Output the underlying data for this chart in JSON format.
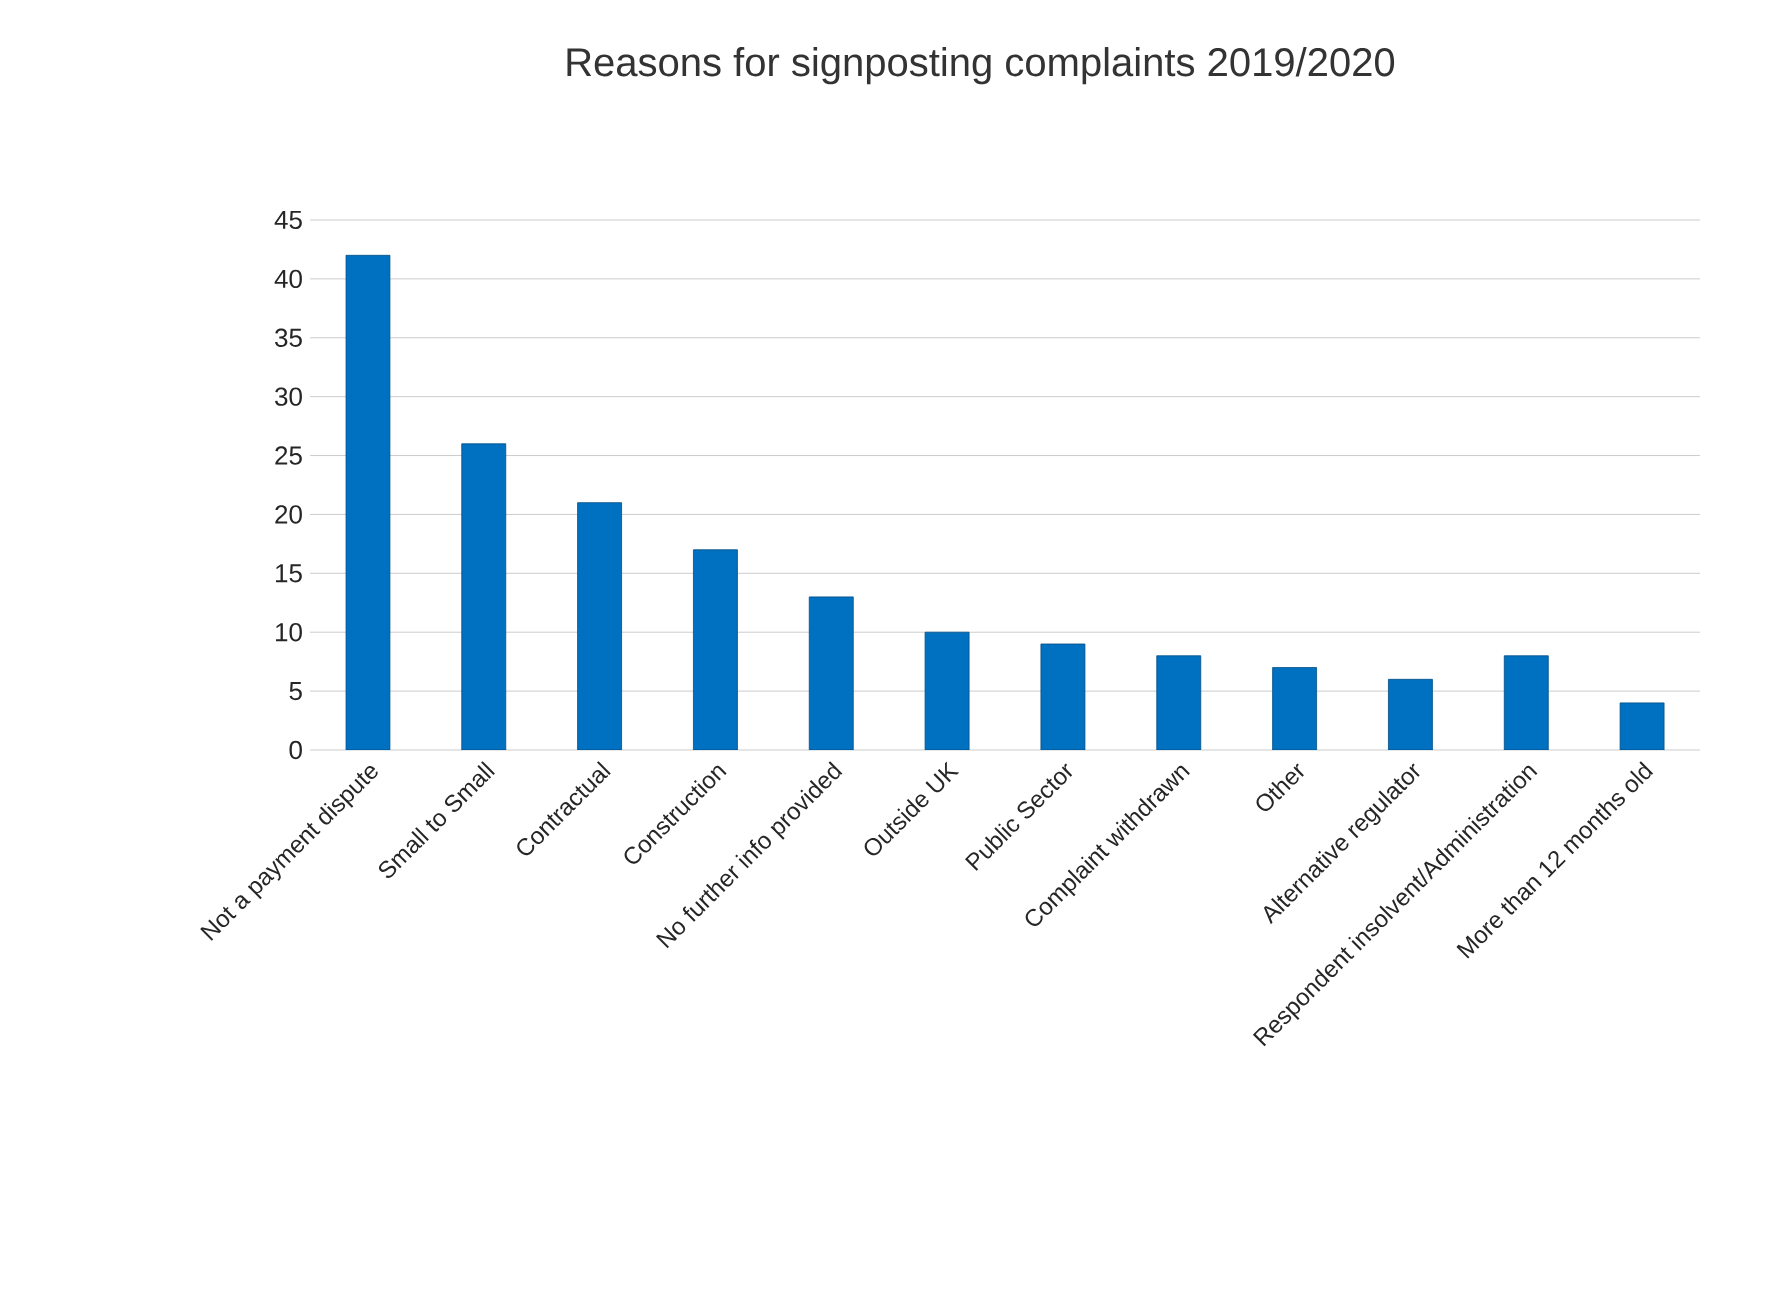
{
  "chart_data": {
    "type": "bar",
    "title": "Reasons for signposting complaints 2019/2020",
    "categories": [
      "Not a payment dispute",
      "Small to Small",
      "Contractual",
      "Construction",
      "No further info provided",
      "Outside UK",
      "Public Sector",
      "Complaint withdrawn",
      "Other",
      "Alternative regulator",
      "Respondent insolvent/Administration",
      "More than 12 months old"
    ],
    "values": [
      42,
      26,
      21,
      17,
      13,
      10,
      9,
      8,
      7,
      6,
      8,
      4
    ],
    "color": "#0070c0",
    "ylim": [
      0,
      45
    ],
    "yticks": [
      0,
      5,
      10,
      15,
      20,
      25,
      30,
      35,
      40,
      45
    ],
    "grid": "y"
  }
}
